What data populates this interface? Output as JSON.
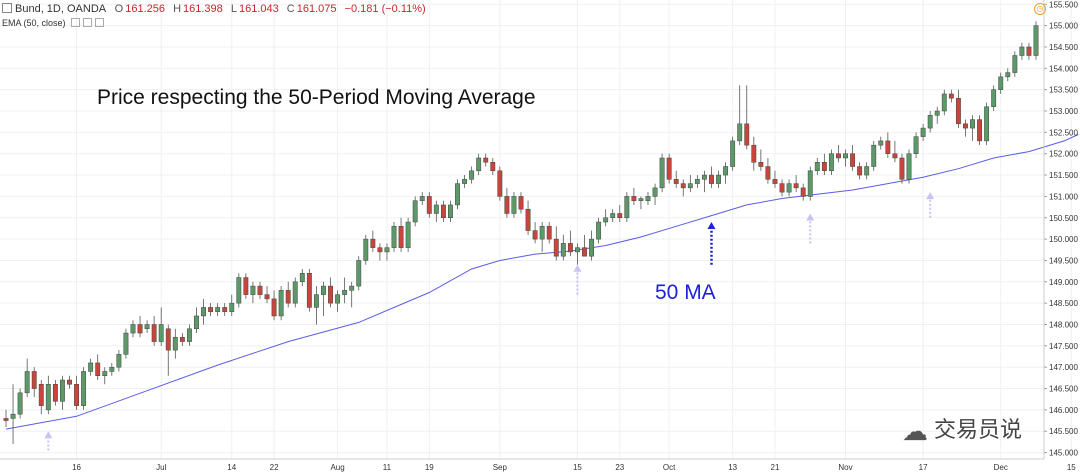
{
  "header": {
    "symbol_line": "Bund, 1D, OANDA",
    "open_label": "O",
    "open": "161.256",
    "high_label": "H",
    "high": "161.398",
    "low_label": "L",
    "low": "161.043",
    "close_label": "C",
    "close": "161.075",
    "change": "−0.181 (−0.11%)",
    "indicator": "EMA (50, close)"
  },
  "annotations": {
    "title": "Price respecting the 50-Period Moving Average",
    "ma_label": "50 MA",
    "watermark": "交易员说",
    "watermark_icon": "wechat-icon"
  },
  "colors": {
    "up": "#5b9a68",
    "down": "#c7453b",
    "ema": "#5c5ce6",
    "arrow_faint": "#c9c3f2",
    "arrow_dark": "#1e22d9",
    "grid": "#eef0f3"
  },
  "chart_data": {
    "type": "candlestick",
    "title": "Price respecting the 50-Period Moving Average",
    "symbol": "Bund, 1D, OANDA",
    "ylim": [
      144.85,
      155.6
    ],
    "y_ticks": [
      "145.000",
      "145.500",
      "146.000",
      "146.500",
      "147.000",
      "147.500",
      "148.000",
      "148.500",
      "149.000",
      "149.500",
      "150.000",
      "150.500",
      "151.000",
      "151.500",
      "152.000",
      "152.500",
      "153.000",
      "153.500",
      "154.000",
      "154.500",
      "155.000",
      "155.500"
    ],
    "x_ticks": [
      {
        "label": "16",
        "i": 10
      },
      {
        "label": "Jul",
        "i": 22
      },
      {
        "label": "14",
        "i": 32
      },
      {
        "label": "22",
        "i": 38
      },
      {
        "label": "Aug",
        "i": 47
      },
      {
        "label": "11",
        "i": 54
      },
      {
        "label": "19",
        "i": 60
      },
      {
        "label": "Sep",
        "i": 70
      },
      {
        "label": "15",
        "i": 81
      },
      {
        "label": "23",
        "i": 87
      },
      {
        "label": "Oct",
        "i": 94
      },
      {
        "label": "13",
        "i": 103
      },
      {
        "label": "21",
        "i": 109
      },
      {
        "label": "Nov",
        "i": 119
      },
      {
        "label": "17",
        "i": 130
      },
      {
        "label": "Dec",
        "i": 141
      },
      {
        "label": "15",
        "i": 151
      }
    ],
    "candles": [
      {
        "o": 145.8,
        "h": 146.0,
        "l": 145.6,
        "c": 145.75
      },
      {
        "o": 145.8,
        "h": 146.6,
        "l": 145.2,
        "c": 145.9
      },
      {
        "o": 145.9,
        "h": 146.5,
        "l": 145.8,
        "c": 146.4
      },
      {
        "o": 146.4,
        "h": 147.2,
        "l": 146.3,
        "c": 146.9
      },
      {
        "o": 146.9,
        "h": 147.0,
        "l": 146.3,
        "c": 146.5
      },
      {
        "o": 146.6,
        "h": 146.7,
        "l": 145.9,
        "c": 146.1
      },
      {
        "o": 146.0,
        "h": 146.8,
        "l": 145.9,
        "c": 146.6
      },
      {
        "o": 146.6,
        "h": 146.7,
        "l": 146.1,
        "c": 146.2
      },
      {
        "o": 146.2,
        "h": 146.8,
        "l": 146.0,
        "c": 146.7
      },
      {
        "o": 146.7,
        "h": 146.8,
        "l": 146.5,
        "c": 146.6
      },
      {
        "o": 146.6,
        "h": 146.8,
        "l": 146.0,
        "c": 146.1
      },
      {
        "o": 146.1,
        "h": 147.0,
        "l": 146.0,
        "c": 146.9
      },
      {
        "o": 146.9,
        "h": 147.2,
        "l": 146.8,
        "c": 147.1
      },
      {
        "o": 147.1,
        "h": 147.3,
        "l": 146.7,
        "c": 146.8
      },
      {
        "o": 146.8,
        "h": 147.0,
        "l": 146.6,
        "c": 146.9
      },
      {
        "o": 146.9,
        "h": 147.1,
        "l": 146.8,
        "c": 147.0
      },
      {
        "o": 147.0,
        "h": 147.4,
        "l": 146.9,
        "c": 147.3
      },
      {
        "o": 147.3,
        "h": 147.9,
        "l": 147.2,
        "c": 147.8
      },
      {
        "o": 147.8,
        "h": 148.1,
        "l": 147.7,
        "c": 148.0
      },
      {
        "o": 148.0,
        "h": 148.2,
        "l": 147.7,
        "c": 147.8
      },
      {
        "o": 147.9,
        "h": 148.1,
        "l": 147.8,
        "c": 148.0
      },
      {
        "o": 148.0,
        "h": 148.2,
        "l": 147.5,
        "c": 147.6
      },
      {
        "o": 147.6,
        "h": 148.4,
        "l": 147.5,
        "c": 148.0
      },
      {
        "o": 147.9,
        "h": 148.0,
        "l": 146.8,
        "c": 147.4
      },
      {
        "o": 147.4,
        "h": 147.9,
        "l": 147.2,
        "c": 147.7
      },
      {
        "o": 147.7,
        "h": 147.8,
        "l": 147.5,
        "c": 147.6
      },
      {
        "o": 147.6,
        "h": 148.0,
        "l": 147.5,
        "c": 147.9
      },
      {
        "o": 147.9,
        "h": 148.4,
        "l": 147.8,
        "c": 148.2
      },
      {
        "o": 148.2,
        "h": 148.6,
        "l": 148.0,
        "c": 148.4
      },
      {
        "o": 148.4,
        "h": 148.5,
        "l": 148.2,
        "c": 148.3
      },
      {
        "o": 148.3,
        "h": 148.5,
        "l": 148.2,
        "c": 148.4
      },
      {
        "o": 148.4,
        "h": 148.5,
        "l": 148.2,
        "c": 148.3
      },
      {
        "o": 148.3,
        "h": 148.7,
        "l": 148.2,
        "c": 148.5
      },
      {
        "o": 148.5,
        "h": 149.2,
        "l": 148.4,
        "c": 149.1
      },
      {
        "o": 149.1,
        "h": 149.2,
        "l": 148.6,
        "c": 148.7
      },
      {
        "o": 148.7,
        "h": 149.0,
        "l": 148.5,
        "c": 148.9
      },
      {
        "o": 148.9,
        "h": 149.0,
        "l": 148.6,
        "c": 148.7
      },
      {
        "o": 148.7,
        "h": 148.9,
        "l": 148.5,
        "c": 148.6
      },
      {
        "o": 148.6,
        "h": 148.8,
        "l": 148.1,
        "c": 148.2
      },
      {
        "o": 148.2,
        "h": 148.9,
        "l": 148.1,
        "c": 148.8
      },
      {
        "o": 148.8,
        "h": 149.0,
        "l": 148.4,
        "c": 148.5
      },
      {
        "o": 148.5,
        "h": 149.1,
        "l": 148.4,
        "c": 149.0
      },
      {
        "o": 149.0,
        "h": 149.3,
        "l": 148.9,
        "c": 149.2
      },
      {
        "o": 149.2,
        "h": 149.3,
        "l": 148.3,
        "c": 148.4
      },
      {
        "o": 148.4,
        "h": 148.9,
        "l": 148.0,
        "c": 148.7
      },
      {
        "o": 148.7,
        "h": 149.0,
        "l": 148.2,
        "c": 148.9
      },
      {
        "o": 148.9,
        "h": 149.1,
        "l": 148.4,
        "c": 148.5
      },
      {
        "o": 148.5,
        "h": 148.8,
        "l": 148.3,
        "c": 148.7
      },
      {
        "o": 148.7,
        "h": 149.1,
        "l": 148.5,
        "c": 148.8
      },
      {
        "o": 148.8,
        "h": 149.0,
        "l": 148.4,
        "c": 148.9
      },
      {
        "o": 148.9,
        "h": 149.6,
        "l": 148.8,
        "c": 149.5
      },
      {
        "o": 149.5,
        "h": 150.1,
        "l": 149.4,
        "c": 150.0
      },
      {
        "o": 150.0,
        "h": 150.2,
        "l": 149.7,
        "c": 149.8
      },
      {
        "o": 149.8,
        "h": 149.9,
        "l": 149.5,
        "c": 149.7
      },
      {
        "o": 149.7,
        "h": 149.9,
        "l": 149.5,
        "c": 149.8
      },
      {
        "o": 149.8,
        "h": 150.4,
        "l": 149.7,
        "c": 150.3
      },
      {
        "o": 150.3,
        "h": 150.5,
        "l": 149.7,
        "c": 149.8
      },
      {
        "o": 149.8,
        "h": 150.5,
        "l": 149.7,
        "c": 150.4
      },
      {
        "o": 150.4,
        "h": 151.0,
        "l": 150.3,
        "c": 150.9
      },
      {
        "o": 150.9,
        "h": 151.1,
        "l": 150.8,
        "c": 151.0
      },
      {
        "o": 151.0,
        "h": 151.1,
        "l": 150.5,
        "c": 150.6
      },
      {
        "o": 150.6,
        "h": 150.9,
        "l": 150.4,
        "c": 150.8
      },
      {
        "o": 150.8,
        "h": 150.9,
        "l": 150.4,
        "c": 150.5
      },
      {
        "o": 150.5,
        "h": 150.9,
        "l": 150.4,
        "c": 150.8
      },
      {
        "o": 150.8,
        "h": 151.4,
        "l": 150.7,
        "c": 151.3
      },
      {
        "o": 151.3,
        "h": 151.5,
        "l": 151.2,
        "c": 151.4
      },
      {
        "o": 151.4,
        "h": 151.7,
        "l": 151.3,
        "c": 151.6
      },
      {
        "o": 151.6,
        "h": 152.0,
        "l": 151.5,
        "c": 151.9
      },
      {
        "o": 151.9,
        "h": 152.0,
        "l": 151.7,
        "c": 151.8
      },
      {
        "o": 151.8,
        "h": 151.9,
        "l": 151.5,
        "c": 151.6
      },
      {
        "o": 151.6,
        "h": 151.7,
        "l": 150.9,
        "c": 151.0
      },
      {
        "o": 151.0,
        "h": 151.2,
        "l": 150.5,
        "c": 150.6
      },
      {
        "o": 150.6,
        "h": 151.1,
        "l": 150.5,
        "c": 151.0
      },
      {
        "o": 151.0,
        "h": 151.1,
        "l": 150.6,
        "c": 150.7
      },
      {
        "o": 150.7,
        "h": 150.9,
        "l": 150.1,
        "c": 150.2
      },
      {
        "o": 150.2,
        "h": 150.4,
        "l": 149.9,
        "c": 150.0
      },
      {
        "o": 150.0,
        "h": 150.4,
        "l": 149.7,
        "c": 150.3
      },
      {
        "o": 150.3,
        "h": 150.4,
        "l": 149.9,
        "c": 150.0
      },
      {
        "o": 150.0,
        "h": 150.3,
        "l": 149.5,
        "c": 149.6
      },
      {
        "o": 149.6,
        "h": 150.1,
        "l": 149.5,
        "c": 149.9
      },
      {
        "o": 149.9,
        "h": 150.2,
        "l": 149.6,
        "c": 149.7
      },
      {
        "o": 149.7,
        "h": 149.9,
        "l": 149.4,
        "c": 149.8
      },
      {
        "o": 149.8,
        "h": 150.1,
        "l": 149.6,
        "c": 149.6
      },
      {
        "o": 149.6,
        "h": 150.2,
        "l": 149.5,
        "c": 150.0
      },
      {
        "o": 150.0,
        "h": 150.5,
        "l": 149.9,
        "c": 150.4
      },
      {
        "o": 150.4,
        "h": 150.7,
        "l": 150.3,
        "c": 150.5
      },
      {
        "o": 150.5,
        "h": 150.7,
        "l": 150.4,
        "c": 150.6
      },
      {
        "o": 150.6,
        "h": 150.8,
        "l": 150.4,
        "c": 150.5
      },
      {
        "o": 150.5,
        "h": 151.1,
        "l": 150.4,
        "c": 151.0
      },
      {
        "o": 151.0,
        "h": 151.2,
        "l": 150.8,
        "c": 150.9
      },
      {
        "o": 150.9,
        "h": 151.0,
        "l": 150.7,
        "c": 150.95
      },
      {
        "o": 150.9,
        "h": 151.1,
        "l": 150.8,
        "c": 151.0
      },
      {
        "o": 151.0,
        "h": 151.3,
        "l": 150.8,
        "c": 151.2
      },
      {
        "o": 151.2,
        "h": 152.0,
        "l": 151.1,
        "c": 151.9
      },
      {
        "o": 151.9,
        "h": 152.0,
        "l": 151.3,
        "c": 151.4
      },
      {
        "o": 151.4,
        "h": 151.6,
        "l": 151.2,
        "c": 151.3
      },
      {
        "o": 151.3,
        "h": 151.4,
        "l": 151.0,
        "c": 151.2
      },
      {
        "o": 151.2,
        "h": 151.5,
        "l": 151.1,
        "c": 151.3
      },
      {
        "o": 151.3,
        "h": 151.5,
        "l": 151.2,
        "c": 151.4
      },
      {
        "o": 151.4,
        "h": 151.6,
        "l": 151.1,
        "c": 151.5
      },
      {
        "o": 151.5,
        "h": 151.7,
        "l": 151.2,
        "c": 151.3
      },
      {
        "o": 151.3,
        "h": 151.6,
        "l": 151.2,
        "c": 151.5
      },
      {
        "o": 151.5,
        "h": 151.8,
        "l": 151.3,
        "c": 151.7
      },
      {
        "o": 151.7,
        "h": 152.4,
        "l": 151.6,
        "c": 152.3
      },
      {
        "o": 152.3,
        "h": 153.6,
        "l": 152.2,
        "c": 152.7
      },
      {
        "o": 152.7,
        "h": 153.6,
        "l": 152.1,
        "c": 152.2
      },
      {
        "o": 152.2,
        "h": 152.4,
        "l": 151.6,
        "c": 151.8
      },
      {
        "o": 151.8,
        "h": 152.1,
        "l": 151.6,
        "c": 151.7
      },
      {
        "o": 151.7,
        "h": 151.9,
        "l": 151.3,
        "c": 151.4
      },
      {
        "o": 151.4,
        "h": 151.6,
        "l": 151.2,
        "c": 151.3
      },
      {
        "o": 151.3,
        "h": 151.4,
        "l": 151.0,
        "c": 151.1
      },
      {
        "o": 151.1,
        "h": 151.4,
        "l": 151.0,
        "c": 151.3
      },
      {
        "o": 151.3,
        "h": 151.5,
        "l": 151.1,
        "c": 151.2
      },
      {
        "o": 151.2,
        "h": 151.3,
        "l": 150.9,
        "c": 151.0
      },
      {
        "o": 151.0,
        "h": 151.7,
        "l": 150.9,
        "c": 151.6
      },
      {
        "o": 151.6,
        "h": 151.9,
        "l": 151.5,
        "c": 151.8
      },
      {
        "o": 151.8,
        "h": 152.0,
        "l": 151.5,
        "c": 151.6
      },
      {
        "o": 151.6,
        "h": 152.1,
        "l": 151.5,
        "c": 152.0
      },
      {
        "o": 152.0,
        "h": 152.2,
        "l": 151.8,
        "c": 151.9
      },
      {
        "o": 151.9,
        "h": 152.1,
        "l": 151.7,
        "c": 152.0
      },
      {
        "o": 152.0,
        "h": 152.2,
        "l": 151.6,
        "c": 151.7
      },
      {
        "o": 151.7,
        "h": 151.8,
        "l": 151.4,
        "c": 151.5
      },
      {
        "o": 151.5,
        "h": 151.8,
        "l": 151.4,
        "c": 151.7
      },
      {
        "o": 151.7,
        "h": 152.3,
        "l": 151.6,
        "c": 152.2
      },
      {
        "o": 152.2,
        "h": 152.4,
        "l": 152.1,
        "c": 152.3
      },
      {
        "o": 152.3,
        "h": 152.5,
        "l": 151.9,
        "c": 152.0
      },
      {
        "o": 152.0,
        "h": 152.3,
        "l": 151.8,
        "c": 151.9
      },
      {
        "o": 151.9,
        "h": 152.0,
        "l": 151.3,
        "c": 151.4
      },
      {
        "o": 151.4,
        "h": 152.1,
        "l": 151.3,
        "c": 152.0
      },
      {
        "o": 152.0,
        "h": 152.5,
        "l": 151.9,
        "c": 152.4
      },
      {
        "o": 152.4,
        "h": 152.7,
        "l": 152.3,
        "c": 152.6
      },
      {
        "o": 152.6,
        "h": 153.0,
        "l": 152.5,
        "c": 152.9
      },
      {
        "o": 152.9,
        "h": 153.1,
        "l": 152.7,
        "c": 153.0
      },
      {
        "o": 153.0,
        "h": 153.5,
        "l": 152.9,
        "c": 153.4
      },
      {
        "o": 153.4,
        "h": 153.5,
        "l": 153.2,
        "c": 153.3
      },
      {
        "o": 153.3,
        "h": 153.5,
        "l": 152.6,
        "c": 152.7
      },
      {
        "o": 152.7,
        "h": 152.8,
        "l": 152.4,
        "c": 152.6
      },
      {
        "o": 152.6,
        "h": 152.9,
        "l": 152.3,
        "c": 152.8
      },
      {
        "o": 152.8,
        "h": 152.9,
        "l": 152.2,
        "c": 152.3
      },
      {
        "o": 152.3,
        "h": 153.2,
        "l": 152.2,
        "c": 153.1
      },
      {
        "o": 153.1,
        "h": 153.6,
        "l": 153.0,
        "c": 153.5
      },
      {
        "o": 153.5,
        "h": 153.9,
        "l": 153.4,
        "c": 153.8
      },
      {
        "o": 153.8,
        "h": 154.0,
        "l": 153.7,
        "c": 153.9
      },
      {
        "o": 153.9,
        "h": 154.4,
        "l": 153.8,
        "c": 154.3
      },
      {
        "o": 154.3,
        "h": 154.6,
        "l": 154.2,
        "c": 154.5
      },
      {
        "o": 154.5,
        "h": 154.6,
        "l": 154.2,
        "c": 154.3
      },
      {
        "o": 154.3,
        "h": 155.1,
        "l": 154.2,
        "c": 155.0
      }
    ],
    "ema50": [
      {
        "i": 0,
        "v": 145.55
      },
      {
        "i": 10,
        "v": 145.85
      },
      {
        "i": 20,
        "v": 146.45
      },
      {
        "i": 30,
        "v": 147.05
      },
      {
        "i": 40,
        "v": 147.6
      },
      {
        "i": 50,
        "v": 148.05
      },
      {
        "i": 60,
        "v": 148.75
      },
      {
        "i": 66,
        "v": 149.3
      },
      {
        "i": 70,
        "v": 149.5
      },
      {
        "i": 75,
        "v": 149.65
      },
      {
        "i": 80,
        "v": 149.72
      },
      {
        "i": 85,
        "v": 149.85
      },
      {
        "i": 90,
        "v": 150.05
      },
      {
        "i": 95,
        "v": 150.3
      },
      {
        "i": 100,
        "v": 150.55
      },
      {
        "i": 105,
        "v": 150.8
      },
      {
        "i": 110,
        "v": 150.95
      },
      {
        "i": 115,
        "v": 151.05
      },
      {
        "i": 120,
        "v": 151.15
      },
      {
        "i": 125,
        "v": 151.3
      },
      {
        "i": 130,
        "v": 151.45
      },
      {
        "i": 135,
        "v": 151.65
      },
      {
        "i": 140,
        "v": 151.9
      },
      {
        "i": 145,
        "v": 152.05
      },
      {
        "i": 150,
        "v": 152.3
      },
      {
        "i": 152,
        "v": 152.45
      }
    ],
    "touch_arrows": [
      {
        "i": 6,
        "from": 145.05,
        "to": 145.5,
        "style": "faint"
      },
      {
        "i": 81,
        "from": 148.7,
        "to": 149.4,
        "style": "faint"
      },
      {
        "i": 100,
        "from": 149.4,
        "to": 150.4,
        "style": "dark"
      },
      {
        "i": 114,
        "from": 149.9,
        "to": 150.6,
        "style": "faint"
      },
      {
        "i": 131,
        "from": 150.5,
        "to": 151.1,
        "style": "faint"
      }
    ]
  }
}
